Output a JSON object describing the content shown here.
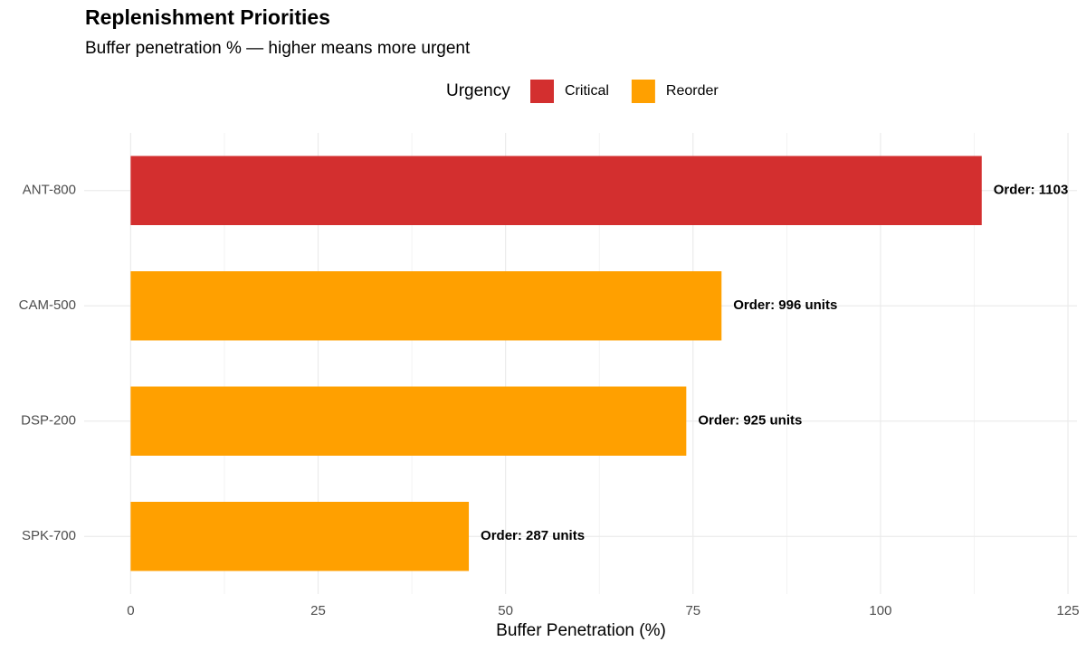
{
  "chart_data": {
    "type": "bar",
    "orientation": "horizontal",
    "title": "Replenishment Priorities",
    "subtitle": "Buffer penetration % — higher means more urgent",
    "x_label": "Buffer Penetration (%)",
    "legend_title": "Urgency",
    "categories": [
      "ANT-800",
      "CAM-500",
      "DSP-200",
      "SPK-700"
    ],
    "series": [
      {
        "name": "Critical",
        "color": "#d32f2f",
        "values": [
          113.5,
          null,
          null,
          null
        ]
      },
      {
        "name": "Reorder",
        "color": "#ffa000",
        "values": [
          null,
          78.8,
          74.1,
          45.1
        ]
      }
    ],
    "bar_labels": [
      "Order: 1103",
      "Order: 996 units",
      "Order: 925 units",
      "Order: 287 units"
    ],
    "xlim": [
      -6.2,
      126.2
    ],
    "xticks": [
      0,
      25,
      50,
      75,
      100,
      125
    ],
    "x_minor_grid": [
      12.5,
      37.5,
      62.5,
      87.5,
      112.5
    ],
    "grid": true,
    "legend_position": "top"
  }
}
